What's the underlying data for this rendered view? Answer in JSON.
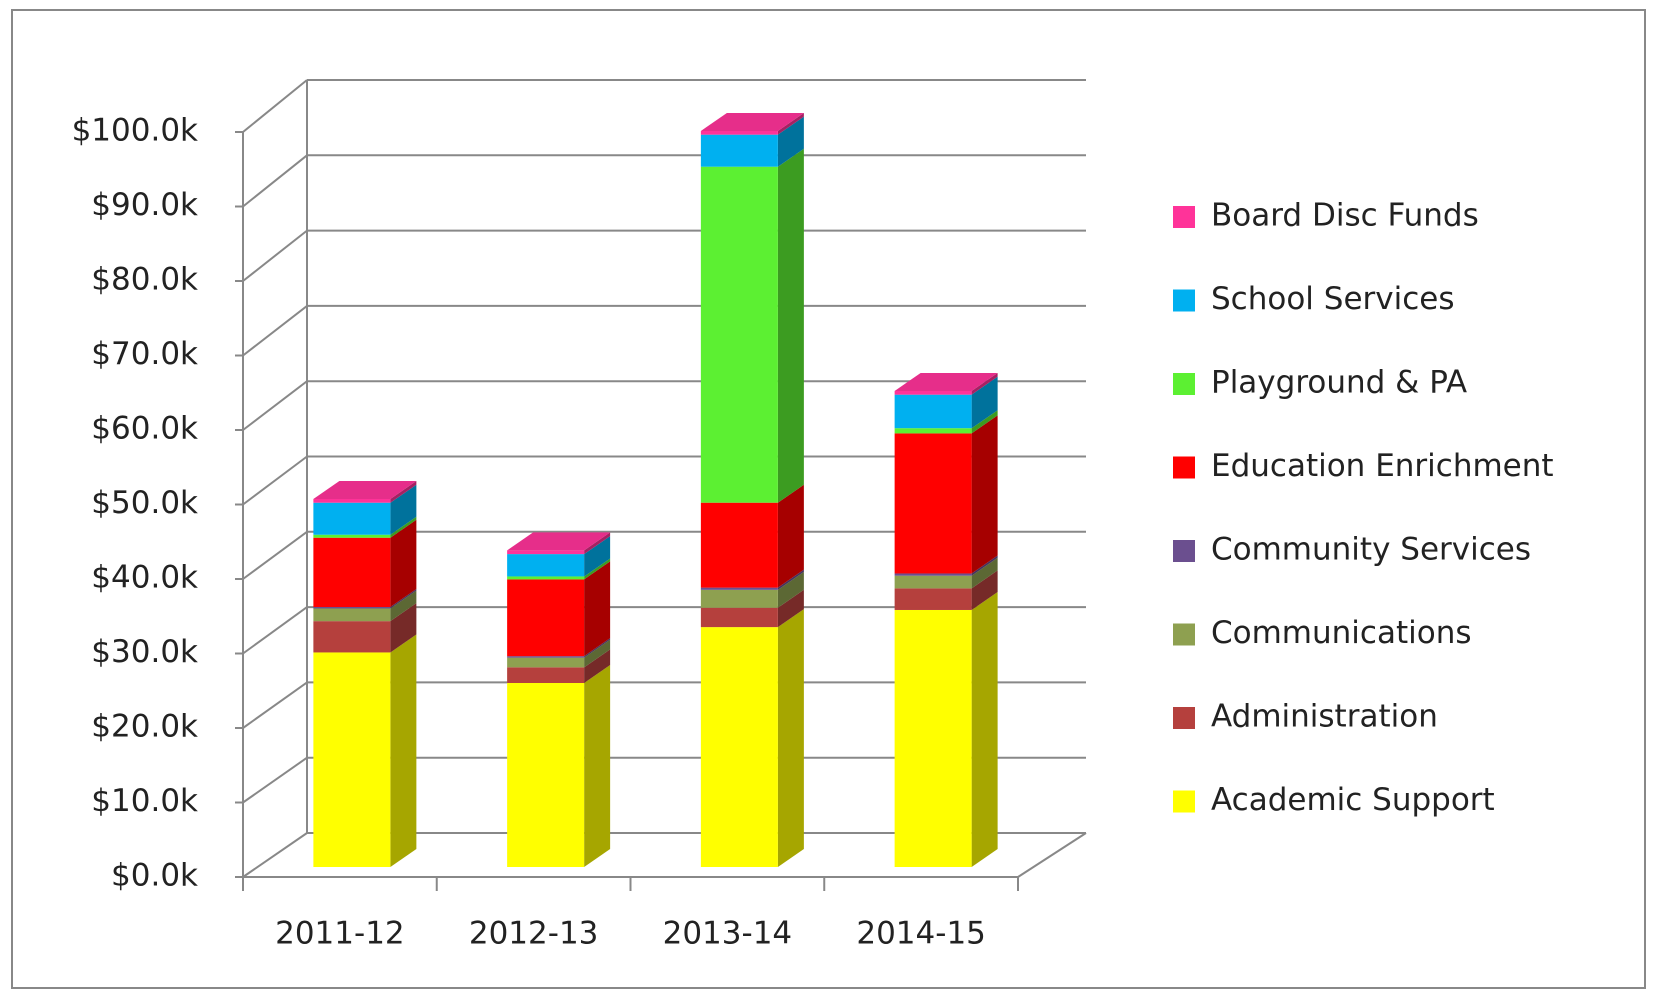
{
  "chart_data": {
    "type": "bar3d_stacked",
    "categories": [
      "2011-12",
      "2012-13",
      "2013-14",
      "2014-15"
    ],
    "series": [
      {
        "name": "Academic Support",
        "color": "#ffff00",
        "values": [
          28.8,
          24.7,
          32.2,
          34.5
        ]
      },
      {
        "name": "Administration",
        "color": "#b5403d",
        "values": [
          4.2,
          2.1,
          2.6,
          2.9
        ]
      },
      {
        "name": "Communications",
        "color": "#8ea050",
        "values": [
          1.7,
          1.3,
          2.4,
          1.7
        ]
      },
      {
        "name": "Community Services",
        "color": "#6b4f8f",
        "values": [
          0.2,
          0.2,
          0.3,
          0.3
        ]
      },
      {
        "name": "Education Enrichment",
        "color": "#ff0000",
        "values": [
          9.3,
          10.3,
          11.4,
          18.8
        ]
      },
      {
        "name": "Playground & PA",
        "color": "#5cf032",
        "values": [
          0.4,
          0.4,
          45.1,
          0.7
        ]
      },
      {
        "name": "School Services",
        "color": "#00b0f0",
        "values": [
          4.3,
          3.0,
          4.3,
          4.5
        ]
      },
      {
        "name": "Board Disc Funds",
        "color": "#ff3399",
        "values": [
          0.5,
          0.5,
          0.5,
          0.5
        ]
      }
    ],
    "ylim": [
      0,
      100
    ],
    "yticks": [
      {
        "value": 0,
        "label": "$0.0k"
      },
      {
        "value": 10,
        "label": "$10.0k"
      },
      {
        "value": 20,
        "label": "$20.0k"
      },
      {
        "value": 30,
        "label": "$30.0k"
      },
      {
        "value": 40,
        "label": "$40.0k"
      },
      {
        "value": 50,
        "label": "$50.0k"
      },
      {
        "value": 60,
        "label": "$60.0k"
      },
      {
        "value": 70,
        "label": "$70.0k"
      },
      {
        "value": 80,
        "label": "$80.0k"
      },
      {
        "value": 90,
        "label": "$90.0k"
      },
      {
        "value": 100,
        "label": "$100.0k"
      }
    ],
    "grid": true,
    "legend": "right"
  }
}
